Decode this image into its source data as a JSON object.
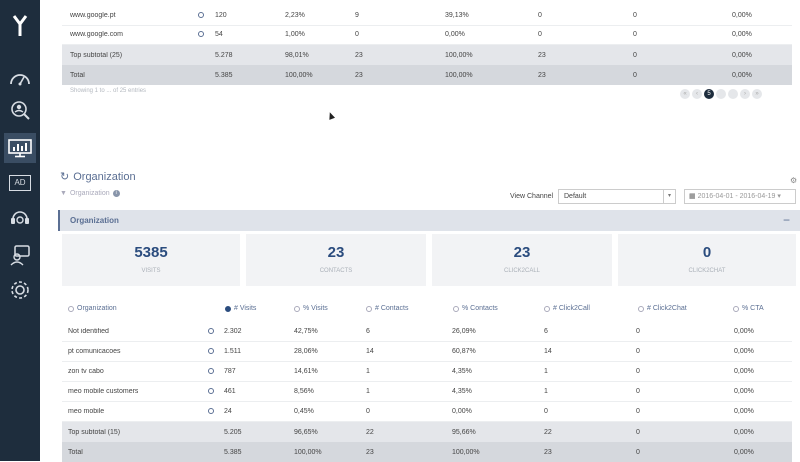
{
  "sidebar": {
    "items": [
      {
        "name": "dashboard"
      },
      {
        "name": "visitors"
      },
      {
        "name": "reports"
      },
      {
        "name": "ad"
      },
      {
        "name": "support"
      },
      {
        "name": "contacts"
      },
      {
        "name": "settings"
      }
    ],
    "ad_label": "AD"
  },
  "top_table": {
    "rows": [
      {
        "name": "www.google.pt",
        "visits": "120",
        "pct_visits": "2,23%",
        "contacts": "9",
        "pct_contacts": "39,13%",
        "click2call": "0",
        "click2chat": "0",
        "cta": "0,00%"
      },
      {
        "name": "www.google.com",
        "visits": "54",
        "pct_visits": "1,00%",
        "contacts": "0",
        "pct_contacts": "0,00%",
        "click2call": "0",
        "click2chat": "0",
        "cta": "0,00%"
      }
    ],
    "subtotal": {
      "name": "Top subtotal (25)",
      "visits": "5.278",
      "pct_visits": "98,01%",
      "contacts": "23",
      "pct_contacts": "100,00%",
      "click2call": "23",
      "click2chat": "0",
      "cta": "0,00%"
    },
    "total": {
      "name": "Total",
      "visits": "5.385",
      "pct_visits": "100,00%",
      "contacts": "23",
      "pct_contacts": "100,00%",
      "click2call": "23",
      "click2chat": "0",
      "cta": "0,00%"
    },
    "showing": "Showing 1 to ... of 25 entries",
    "pager": {
      "current": "5"
    }
  },
  "org_section": {
    "title": "Organization",
    "subtitle": "Organization",
    "view_channel_label": "View Channel",
    "view_channel_value": "Default",
    "date_range": "2016-04-01 - 2016-04-19",
    "bar_title": "Organization"
  },
  "kpis": [
    {
      "value": "5385",
      "label": "VISITS"
    },
    {
      "value": "23",
      "label": "CONTACTS"
    },
    {
      "value": "23",
      "label": "CLICK2CALL"
    },
    {
      "value": "0",
      "label": "CLICK2CHAT"
    }
  ],
  "org_table": {
    "headers": [
      "Organization",
      "# Visits",
      "% Visits",
      "# Contacts",
      "% Contacts",
      "# Click2Call",
      "# Click2Chat",
      "% CTA"
    ],
    "rows": [
      {
        "name": "Not identified",
        "visits": "2.302",
        "pct_visits": "42,75%",
        "contacts": "6",
        "pct_contacts": "26,09%",
        "click2call": "6",
        "click2chat": "0",
        "cta": "0,00%"
      },
      {
        "name": "pt comunicacoes",
        "visits": "1.511",
        "pct_visits": "28,06%",
        "contacts": "14",
        "pct_contacts": "60,87%",
        "click2call": "14",
        "click2chat": "0",
        "cta": "0,00%"
      },
      {
        "name": "zon tv cabo",
        "visits": "787",
        "pct_visits": "14,61%",
        "contacts": "1",
        "pct_contacts": "4,35%",
        "click2call": "1",
        "click2chat": "0",
        "cta": "0,00%"
      },
      {
        "name": "meo mobile customers",
        "visits": "461",
        "pct_visits": "8,56%",
        "contacts": "1",
        "pct_contacts": "4,35%",
        "click2call": "1",
        "click2chat": "0",
        "cta": "0,00%"
      },
      {
        "name": "meo mobile",
        "visits": "24",
        "pct_visits": "0,45%",
        "contacts": "0",
        "pct_contacts": "0,00%",
        "click2call": "0",
        "click2chat": "0",
        "cta": "0,00%"
      }
    ],
    "subtotal": {
      "name": "Top subtotal (15)",
      "visits": "5.205",
      "pct_visits": "96,65%",
      "contacts": "22",
      "pct_contacts": "95,66%",
      "click2call": "22",
      "click2chat": "0",
      "cta": "0,00%"
    },
    "total": {
      "name": "Total",
      "visits": "5.385",
      "pct_visits": "100,00%",
      "contacts": "23",
      "pct_contacts": "100,00%",
      "click2call": "23",
      "click2chat": "0",
      "cta": "0,00%"
    }
  },
  "colors": {
    "sidebar": "#1e2d3d",
    "accent": "#5b6f93",
    "kpi_value": "#2b4c7e"
  }
}
